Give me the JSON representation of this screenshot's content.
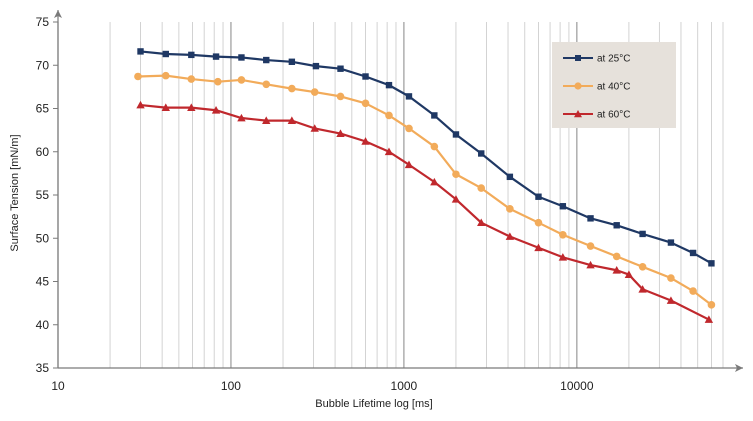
{
  "chart_data": {
    "type": "line",
    "xlabel": "Bubble Lifetime log [ms]",
    "ylabel": "Surface Tension [mN/m]",
    "x_scale": "log",
    "xlim": [
      10,
      70000
    ],
    "ylim": [
      35,
      75
    ],
    "x_ticks": [
      10,
      100,
      1000,
      10000
    ],
    "x_tick_labels": [
      "10",
      "100",
      "1000",
      "10000"
    ],
    "y_ticks": [
      35,
      40,
      45,
      50,
      55,
      60,
      65,
      70,
      75
    ],
    "y_tick_labels": [
      "35",
      "40",
      "45",
      "50",
      "55",
      "60",
      "65",
      "70",
      "75"
    ],
    "grid": "vertical log minor lines",
    "legend_position": "top-right",
    "series": [
      {
        "name": "at 25°C",
        "color": "#1f3864",
        "marker": "square",
        "x": [
          30,
          42,
          59,
          82,
          115,
          160,
          225,
          310,
          430,
          600,
          820,
          1070,
          1500,
          2000,
          2800,
          4100,
          6000,
          8300,
          12000,
          17000,
          24000,
          35000,
          47000,
          60000
        ],
        "y": [
          71.6,
          71.3,
          71.2,
          71.0,
          70.9,
          70.6,
          70.4,
          69.9,
          69.6,
          68.7,
          67.7,
          66.4,
          64.2,
          62.0,
          59.8,
          57.1,
          54.8,
          53.7,
          52.3,
          51.5,
          50.5,
          49.5,
          48.3,
          47.1
        ]
      },
      {
        "name": "at 40°C",
        "color": "#f2ab5a",
        "marker": "circle",
        "x": [
          29,
          42,
          59,
          84,
          115,
          160,
          225,
          305,
          430,
          600,
          820,
          1070,
          1500,
          2000,
          2800,
          4100,
          6000,
          8300,
          12000,
          17000,
          24000,
          35000,
          47000,
          60000
        ],
        "y": [
          68.7,
          68.8,
          68.4,
          68.1,
          68.3,
          67.8,
          67.3,
          66.9,
          66.4,
          65.6,
          64.2,
          62.7,
          60.6,
          57.4,
          55.8,
          53.4,
          51.8,
          50.4,
          49.1,
          47.9,
          46.7,
          45.4,
          43.9,
          42.3
        ]
      },
      {
        "name": "at 60°C",
        "color": "#c0282d",
        "marker": "triangle",
        "x": [
          30,
          42,
          59,
          82,
          115,
          160,
          225,
          305,
          430,
          600,
          820,
          1070,
          1500,
          2000,
          2800,
          4100,
          6000,
          8300,
          12000,
          17000,
          20000,
          24000,
          35000,
          58000
        ],
        "y": [
          65.4,
          65.1,
          65.1,
          64.8,
          63.9,
          63.6,
          63.6,
          62.7,
          62.1,
          61.2,
          60.0,
          58.5,
          56.5,
          54.5,
          51.8,
          50.2,
          48.9,
          47.8,
          46.9,
          46.3,
          45.8,
          44.1,
          42.8,
          40.6
        ]
      }
    ]
  }
}
